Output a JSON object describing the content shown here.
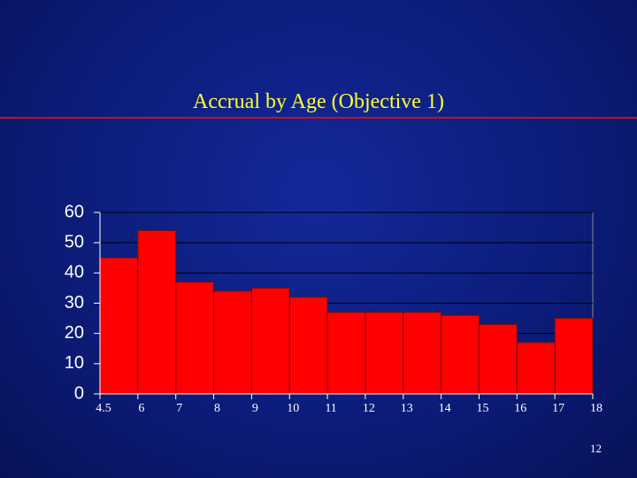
{
  "chart_data": {
    "type": "histogram",
    "title": "Accrual by Age  (Objective 1)",
    "bins": [
      4.5,
      6,
      7,
      8,
      9,
      10,
      11,
      12,
      13,
      14,
      15,
      16,
      17,
      18
    ],
    "values": [
      45,
      54,
      37,
      34,
      35,
      32,
      27,
      27,
      27,
      26,
      23,
      17,
      25
    ],
    "color": "#ff0000",
    "ylim": [
      0,
      60
    ],
    "yticks": [
      0,
      10,
      20,
      30,
      40,
      50,
      60
    ],
    "grid": true
  },
  "slide": {
    "page_number": "12"
  }
}
